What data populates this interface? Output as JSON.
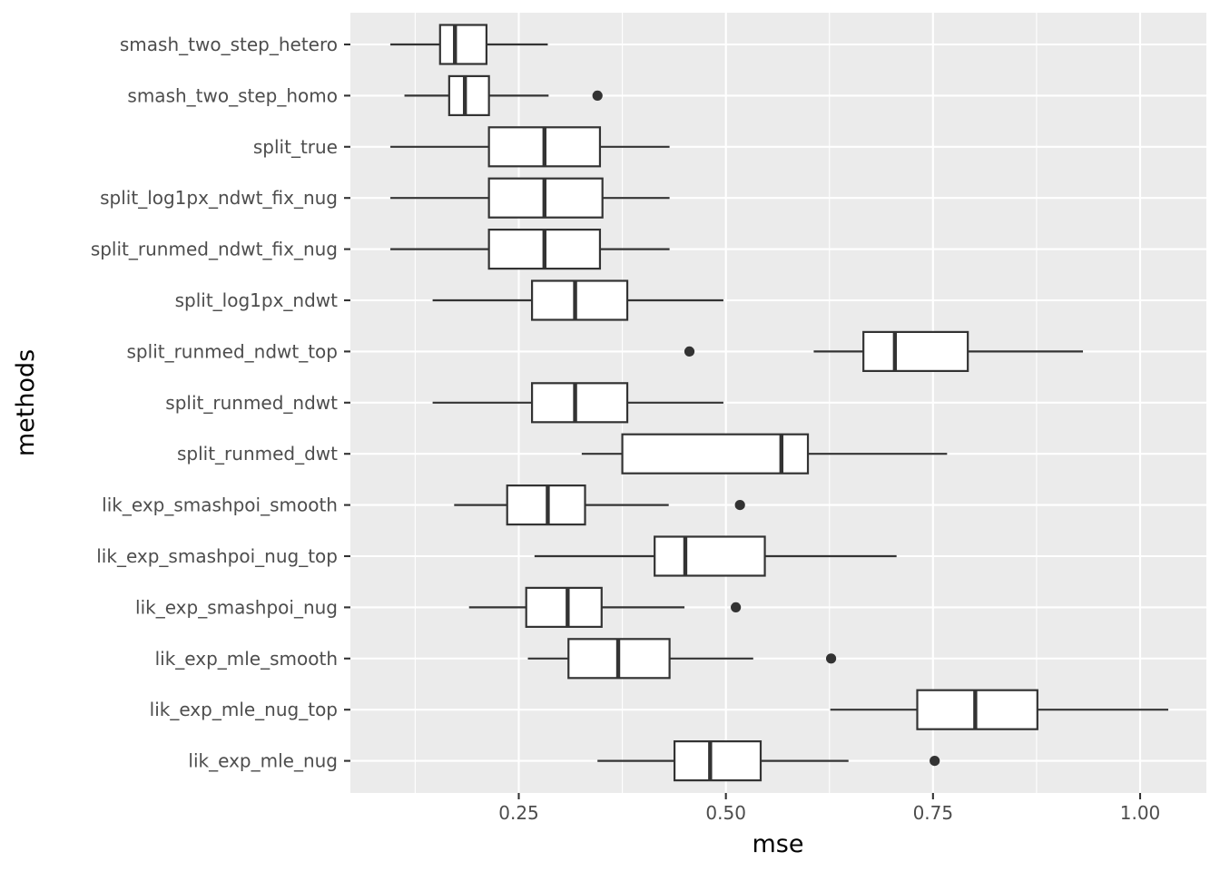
{
  "chart_data": {
    "type": "boxplot",
    "orientation": "horizontal",
    "xlabel": "mse",
    "ylabel": "methods",
    "xlim": [
      0.05,
      1.08
    ],
    "x_ticks": [
      0.25,
      0.5,
      0.75,
      1.0
    ],
    "x_tick_labels": [
      "0.25",
      "0.50",
      "0.75",
      "1.00"
    ],
    "grid": true,
    "colors": {
      "panel": "#ebebeb",
      "grid": "#ffffff",
      "box_stroke": "#333333",
      "box_fill": "#ffffff",
      "text": "#4d4d4d"
    },
    "categories": [
      "smash_two_step_hetero",
      "smash_two_step_homo",
      "split_true",
      "split_log1px_ndwt_fix_nug",
      "split_runmed_ndwt_fix_nug",
      "split_log1px_ndwt",
      "split_runmed_ndwt_top",
      "split_runmed_ndwt",
      "split_runmed_dwt",
      "lik_exp_smashpoi_smooth",
      "lik_exp_smashpoi_nug_top",
      "lik_exp_smashpoi_nug",
      "lik_exp_mle_smooth",
      "lik_exp_mle_nug_top",
      "lik_exp_mle_nug"
    ],
    "boxes": [
      {
        "whisker_low": 0.095,
        "q1": 0.155,
        "median": 0.173,
        "q3": 0.211,
        "whisker_high": 0.285,
        "outliers": []
      },
      {
        "whisker_low": 0.112,
        "q1": 0.166,
        "median": 0.185,
        "q3": 0.214,
        "whisker_high": 0.286,
        "outliers": [
          0.345
        ]
      },
      {
        "whisker_low": 0.095,
        "q1": 0.214,
        "median": 0.281,
        "q3": 0.348,
        "whisker_high": 0.432,
        "outliers": []
      },
      {
        "whisker_low": 0.095,
        "q1": 0.214,
        "median": 0.281,
        "q3": 0.351,
        "whisker_high": 0.432,
        "outliers": []
      },
      {
        "whisker_low": 0.095,
        "q1": 0.214,
        "median": 0.281,
        "q3": 0.348,
        "whisker_high": 0.432,
        "outliers": []
      },
      {
        "whisker_low": 0.146,
        "q1": 0.266,
        "median": 0.318,
        "q3": 0.381,
        "whisker_high": 0.497,
        "outliers": []
      },
      {
        "whisker_low": 0.606,
        "q1": 0.666,
        "median": 0.704,
        "q3": 0.792,
        "whisker_high": 0.931,
        "outliers": [
          0.456
        ]
      },
      {
        "whisker_low": 0.146,
        "q1": 0.266,
        "median": 0.318,
        "q3": 0.381,
        "whisker_high": 0.497,
        "outliers": []
      },
      {
        "whisker_low": 0.326,
        "q1": 0.375,
        "median": 0.567,
        "q3": 0.599,
        "whisker_high": 0.767,
        "outliers": []
      },
      {
        "whisker_low": 0.172,
        "q1": 0.236,
        "median": 0.285,
        "q3": 0.33,
        "whisker_high": 0.431,
        "outliers": [
          0.517
        ]
      },
      {
        "whisker_low": 0.269,
        "q1": 0.414,
        "median": 0.451,
        "q3": 0.547,
        "whisker_high": 0.706,
        "outliers": []
      },
      {
        "whisker_low": 0.19,
        "q1": 0.259,
        "median": 0.309,
        "q3": 0.35,
        "whisker_high": 0.45,
        "outliers": [
          0.512
        ]
      },
      {
        "whisker_low": 0.261,
        "q1": 0.31,
        "median": 0.37,
        "q3": 0.432,
        "whisker_high": 0.533,
        "outliers": [
          0.627
        ]
      },
      {
        "whisker_low": 0.626,
        "q1": 0.731,
        "median": 0.801,
        "q3": 0.876,
        "whisker_high": 1.034,
        "outliers": []
      },
      {
        "whisker_low": 0.345,
        "q1": 0.438,
        "median": 0.481,
        "q3": 0.542,
        "whisker_high": 0.648,
        "outliers": [
          0.752
        ]
      }
    ]
  }
}
